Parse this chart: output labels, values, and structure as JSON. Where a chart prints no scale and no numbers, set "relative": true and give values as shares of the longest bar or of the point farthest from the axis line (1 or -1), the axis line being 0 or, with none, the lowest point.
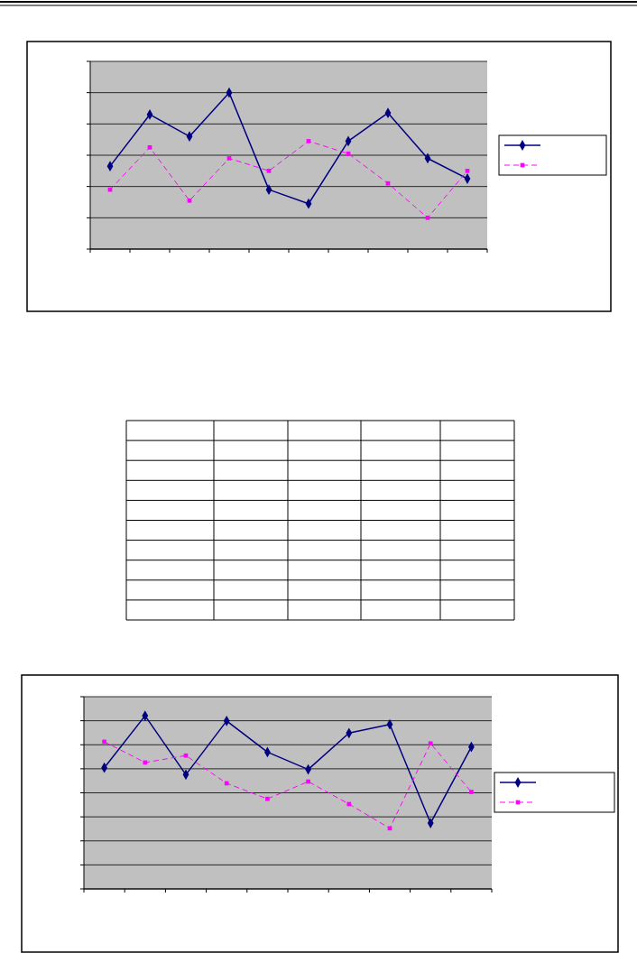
{
  "chart_data": [
    {
      "type": "line",
      "relative": true,
      "categories": [
        null,
        null,
        null,
        null,
        null,
        null,
        null,
        null,
        null,
        null
      ],
      "grid": "y",
      "series": [
        {
          "color": "#000080",
          "marker": "diamond",
          "line_style": "solid",
          "values": [
            0.53,
            0.86,
            0.72,
            1,
            0.38,
            0.29,
            0.69,
            0.87,
            0.58,
            0.45
          ]
        },
        {
          "color": "#ff00ff",
          "marker": "square",
          "line_style": "dashed",
          "values": [
            0.38,
            0.65,
            0.31,
            0.58,
            0.5,
            0.69,
            0.61,
            0.42,
            0.2,
            0.5
          ]
        }
      ]
    },
    {
      "type": "line",
      "relative": true,
      "categories": [
        null,
        null,
        null,
        null,
        null,
        null,
        null,
        null,
        null,
        null
      ],
      "grid": "y",
      "series": [
        {
          "color": "#000080",
          "marker": "diamond",
          "line_style": "solid",
          "values": [
            0.7,
            1,
            0.66,
            0.97,
            0.79,
            0.69,
            0.9,
            0.95,
            0.38,
            0.82
          ]
        },
        {
          "color": "#ff00ff",
          "marker": "square",
          "line_style": "dashed",
          "values": [
            0.85,
            0.73,
            0.77,
            0.61,
            0.52,
            0.62,
            0.49,
            0.35,
            0.84,
            0.56
          ]
        }
      ]
    }
  ]
}
